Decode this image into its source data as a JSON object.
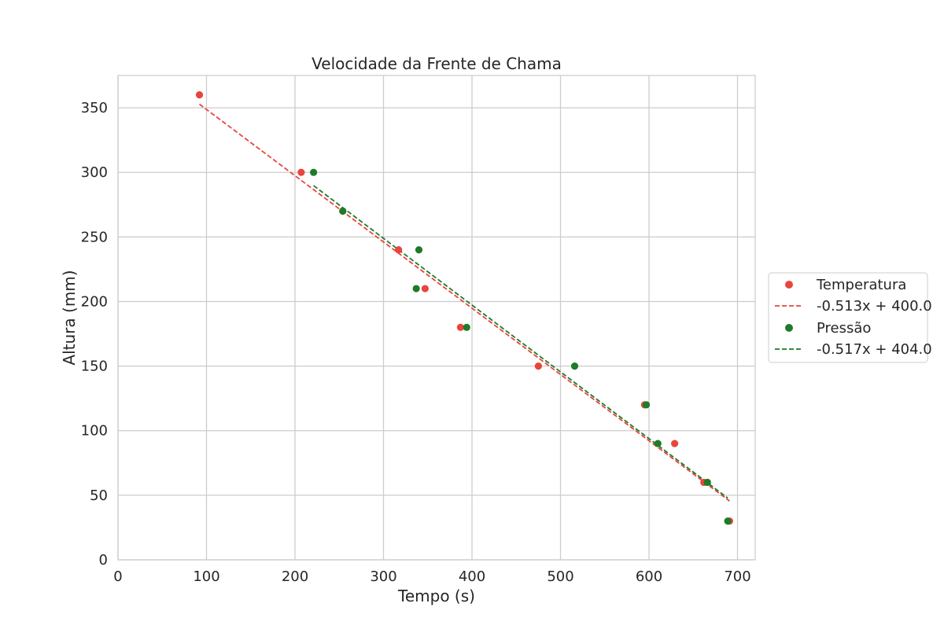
{
  "chart_data": {
    "type": "scatter",
    "title": "Velocidade da Frente de Chama",
    "xlabel": "Tempo (s)",
    "ylabel": "Altura (mm)",
    "xlim": [
      0,
      720
    ],
    "ylim": [
      0,
      375
    ],
    "xticks": [
      0,
      100,
      200,
      300,
      400,
      500,
      600,
      700
    ],
    "yticks": [
      0,
      50,
      100,
      150,
      200,
      250,
      300,
      350
    ],
    "grid": true,
    "legend_position": "center-right-outside",
    "series": [
      {
        "name": "Temperatura",
        "kind": "scatter",
        "color": "#e8453c",
        "points": [
          [
            92,
            360
          ],
          [
            207,
            300
          ],
          [
            254,
            270
          ],
          [
            317,
            240
          ],
          [
            347,
            210
          ],
          [
            387,
            180
          ],
          [
            475,
            150
          ],
          [
            595,
            120
          ],
          [
            629,
            90
          ],
          [
            662,
            60
          ],
          [
            691,
            30
          ]
        ]
      },
      {
        "name": "-0.513x + 400.0",
        "kind": "fit",
        "color": "#e8453c",
        "slope": -0.513,
        "intercept": 400.0,
        "x_range": [
          92,
          691
        ]
      },
      {
        "name": "Pressão",
        "kind": "scatter",
        "color": "#1e7b2a",
        "points": [
          [
            221,
            300
          ],
          [
            254,
            270
          ],
          [
            337,
            210
          ],
          [
            340,
            240
          ],
          [
            394,
            180
          ],
          [
            516,
            150
          ],
          [
            597,
            120
          ],
          [
            610,
            90
          ],
          [
            666,
            60
          ],
          [
            689,
            30
          ]
        ]
      },
      {
        "name": "-0.517x + 404.0",
        "kind": "fit",
        "color": "#1e7b2a",
        "slope": -0.517,
        "intercept": 404.0,
        "x_range": [
          221,
          689
        ]
      }
    ]
  }
}
